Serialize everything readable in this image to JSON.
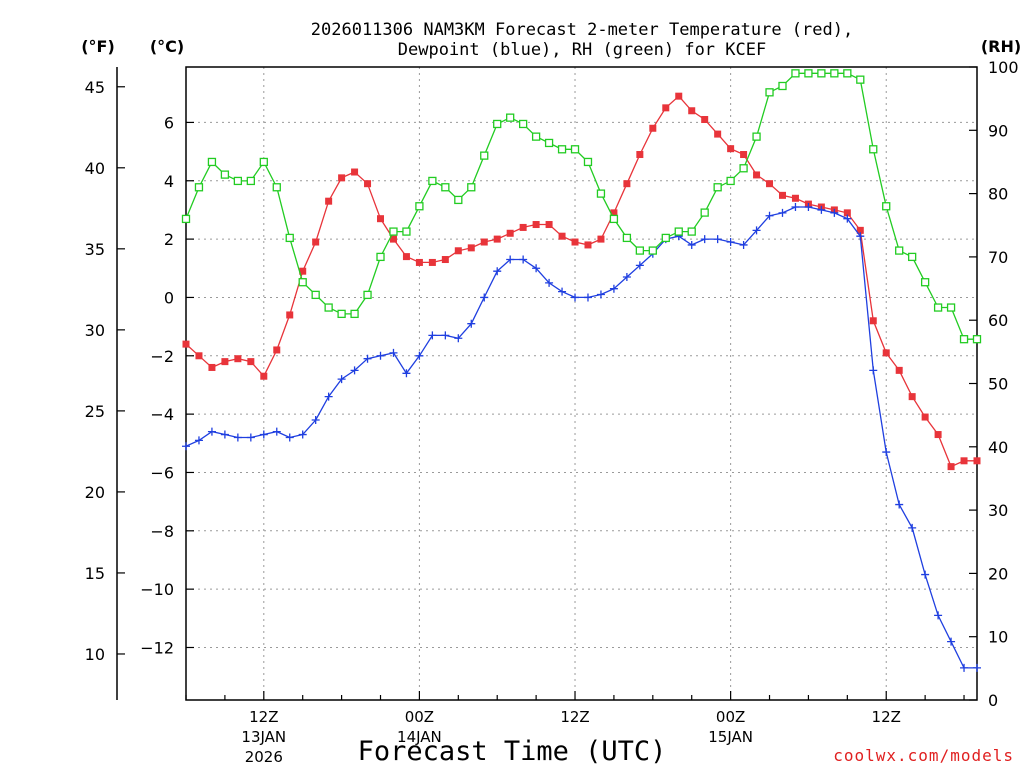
{
  "chart_data": {
    "type": "line",
    "title_line1": "2026011306 NAM3KM Forecast 2-meter Temperature (red),",
    "title_line2": "Dewpoint (blue), RH (green) for KCEF",
    "xlabel": "Forecast Time (UTC)",
    "credit": "coolwx.com/models",
    "unit_f": "(°F)",
    "unit_c": "(°C)",
    "unit_rh": "(RH)",
    "x_hours_range": [
      6,
      67
    ],
    "y_c_range": [
      -13.8,
      7.9
    ],
    "y_rh_range": [
      0,
      100
    ],
    "grid": true,
    "celsius_ticks": [
      "-12",
      "-10",
      "-8",
      "-6",
      "-4",
      "-2",
      "0",
      "2",
      "4",
      "6"
    ],
    "fahrenheit_ticks": [
      "10",
      "15",
      "20",
      "25",
      "30",
      "35",
      "40",
      "45"
    ],
    "rh_ticks": [
      "0",
      "10",
      "20",
      "30",
      "40",
      "50",
      "60",
      "70",
      "80",
      "90",
      "100"
    ],
    "time_ticks": [
      {
        "hour": 12,
        "label": "12Z",
        "date": "13JAN",
        "year": "2026"
      },
      {
        "hour": 24,
        "label": "00Z",
        "date": "14JAN",
        "year": ""
      },
      {
        "hour": 36,
        "label": "12Z",
        "date": "",
        "year": ""
      },
      {
        "hour": 48,
        "label": "00Z",
        "date": "15JAN",
        "year": ""
      },
      {
        "hour": 60,
        "label": "12Z",
        "date": "",
        "year": ""
      }
    ],
    "x_hours": [
      6,
      7,
      8,
      9,
      10,
      11,
      12,
      13,
      14,
      15,
      16,
      17,
      18,
      19,
      20,
      21,
      22,
      23,
      24,
      25,
      26,
      27,
      28,
      29,
      30,
      31,
      32,
      33,
      34,
      35,
      36,
      37,
      38,
      39,
      40,
      41,
      42,
      43,
      44,
      45,
      46,
      47,
      48,
      49,
      50,
      51,
      52,
      53,
      54,
      55,
      56,
      57,
      58,
      59,
      60,
      61,
      62,
      63,
      64,
      65,
      66,
      67
    ],
    "series": [
      {
        "name": "Temperature",
        "unit": "C",
        "color": "#e8343a",
        "marker": "filled-square",
        "values": [
          -1.6,
          -2.0,
          -2.4,
          -2.2,
          -2.1,
          -2.2,
          -2.7,
          -1.8,
          -0.6,
          0.9,
          1.9,
          3.3,
          4.1,
          4.3,
          3.9,
          2.7,
          2.0,
          1.4,
          1.2,
          1.2,
          1.3,
          1.6,
          1.7,
          1.9,
          2.0,
          2.2,
          2.4,
          2.5,
          2.5,
          2.1,
          1.9,
          1.8,
          2.0,
          2.9,
          3.9,
          4.9,
          5.8,
          6.5,
          6.9,
          6.4,
          6.1,
          5.6,
          5.1,
          4.9,
          4.2,
          3.9,
          3.5,
          3.4,
          3.2,
          3.1,
          3.0,
          2.9,
          2.3,
          -0.8,
          -1.9,
          -2.5,
          -3.4,
          -4.1,
          -4.7,
          -5.8,
          -5.6,
          -5.6
        ]
      },
      {
        "name": "Dewpoint",
        "unit": "C",
        "color": "#1f3fe0",
        "marker": "plus",
        "values": [
          -5.1,
          -4.9,
          -4.6,
          -4.7,
          -4.8,
          -4.8,
          -4.7,
          -4.6,
          -4.8,
          -4.7,
          -4.2,
          -3.4,
          -2.8,
          -2.5,
          -2.1,
          -2.0,
          -1.9,
          -2.6,
          -2.0,
          -1.3,
          -1.3,
          -1.4,
          -0.9,
          0.0,
          0.9,
          1.3,
          1.3,
          1.0,
          0.5,
          0.2,
          0.0,
          0.0,
          0.1,
          0.3,
          0.7,
          1.1,
          1.5,
          2.0,
          2.1,
          1.8,
          2.0,
          2.0,
          1.9,
          1.8,
          2.3,
          2.8,
          2.9,
          3.1,
          3.1,
          3.0,
          2.9,
          2.7,
          2.1,
          -2.5,
          -5.3,
          -7.1,
          -7.9,
          -9.5,
          -10.9,
          -11.8,
          -12.7,
          -12.7
        ]
      },
      {
        "name": "RH",
        "unit": "%",
        "color": "#22cc22",
        "marker": "open-square",
        "values": [
          76,
          81,
          85,
          83,
          82,
          82,
          85,
          81,
          73,
          66,
          64,
          62,
          61,
          61,
          64,
          70,
          74,
          74,
          78,
          82,
          81,
          79,
          81,
          86,
          91,
          92,
          91,
          89,
          88,
          87,
          87,
          85,
          80,
          76,
          73,
          71,
          71,
          73,
          74,
          74,
          77,
          81,
          82,
          84,
          89,
          96,
          97,
          99,
          99,
          99,
          99,
          99,
          98,
          87,
          78,
          71,
          70,
          66,
          62,
          62,
          57,
          57
        ]
      }
    ]
  }
}
